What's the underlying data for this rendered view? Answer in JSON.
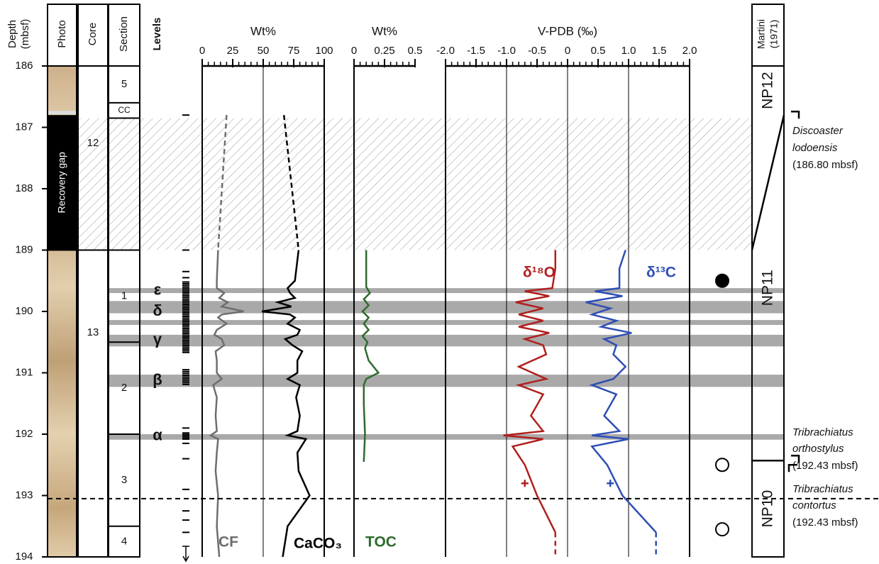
{
  "depth_axis": {
    "label": [
      "Depth",
      "(mbsf)"
    ],
    "ylim": [
      186,
      194
    ],
    "yticks": [
      186,
      187,
      188,
      189,
      190,
      191,
      192,
      193,
      194
    ]
  },
  "columns": {
    "photo": "Photo",
    "core": "Core",
    "section": "Section",
    "levels": "Levels"
  },
  "recovery_gap": {
    "label": "Recovery gap",
    "top": 186.8,
    "bottom": 189
  },
  "cores": [
    {
      "label": "12",
      "top": 186,
      "bottom": 189
    },
    {
      "label": "13",
      "top": 189,
      "bottom": 194
    }
  ],
  "sections": [
    {
      "label": "5",
      "top": 186,
      "bottom": 186.6
    },
    {
      "label": "CC",
      "top": 186.6,
      "bottom": 186.85
    },
    {
      "label": "1",
      "top": 189,
      "bottom": 190.5
    },
    {
      "label": "2",
      "top": 190.5,
      "bottom": 192
    },
    {
      "label": "3",
      "top": 192,
      "bottom": 193.5
    },
    {
      "label": "4",
      "top": 193.5,
      "bottom": 194
    }
  ],
  "levels": [
    {
      "label": "ε",
      "depth": 189.66
    },
    {
      "label": "δ",
      "depth": 190.0
    },
    {
      "label": "γ",
      "depth": 190.47
    },
    {
      "label": "β",
      "depth": 191.13
    },
    {
      "label": "α",
      "depth": 192.03
    }
  ],
  "horizons": [
    [
      189.62,
      189.7
    ],
    [
      189.83,
      190.03
    ],
    [
      190.14,
      190.22
    ],
    [
      190.38,
      190.57
    ],
    [
      191.03,
      191.23
    ],
    [
      192.0,
      192.09
    ]
  ],
  "hatch": [
    186.85,
    189
  ],
  "dashed_boundary": 193.05,
  "markers": [
    {
      "depth": 189.5,
      "filled": true
    },
    {
      "depth": 192.5,
      "filled": false
    },
    {
      "depth": 193.55,
      "filled": false
    }
  ],
  "zones": {
    "title": [
      "Martini",
      "(1971)"
    ],
    "items": [
      {
        "label": "NP12",
        "top": 186,
        "bottom": 186.8
      },
      {
        "label": "NP11",
        "top": 186.8,
        "bottom": 192.43
      },
      {
        "label": "NP10",
        "top": 192.43,
        "bottom": 194
      }
    ]
  },
  "datums": [
    {
      "lines": [
        "Discoaster",
        "lodoensis"
      ],
      "depth_label": "(186.80 mbsf)",
      "depth": 186.8
    },
    {
      "lines": [
        "Tribrachiatus",
        "orthostylus"
      ],
      "depth_label": "(192.43 mbsf)",
      "depth": 192.43
    },
    {
      "lines": [
        "Tribrachiatus",
        "contortus"
      ],
      "depth_label": "(192.43 mbsf)",
      "depth": 192.43
    }
  ],
  "chart_data": [
    {
      "type": "line",
      "title": "Wt%",
      "xlim": [
        0,
        100
      ],
      "xticks": [
        0,
        25,
        50,
        75,
        100
      ],
      "gridlines": [
        50
      ],
      "box": true,
      "series": [
        {
          "name": "CF",
          "color": "#6e6e6e",
          "depths": [
            189.0,
            189.5,
            189.62,
            189.7,
            189.78,
            189.85,
            189.92,
            190.0,
            190.05,
            190.1,
            190.2,
            190.3,
            190.38,
            190.45,
            190.55,
            190.65,
            190.8,
            191.0,
            191.1,
            191.2,
            191.4,
            191.7,
            191.95,
            192.02,
            192.08,
            192.3,
            192.6,
            193.0,
            193.5,
            194.0
          ],
          "values": [
            13,
            12,
            12,
            18,
            14,
            21,
            16,
            34,
            16,
            13,
            20,
            12,
            10,
            16,
            18,
            11,
            12,
            12,
            16,
            9,
            12,
            11,
            12,
            7,
            13,
            12,
            11,
            13,
            12,
            14
          ]
        },
        {
          "color": "#6e6e6e",
          "dashed": true,
          "depths": [
            186.8,
            189.0
          ],
          "values": [
            20,
            13
          ]
        },
        {
          "name": "CaCO₃",
          "color": "#000000",
          "depths": [
            189.0,
            189.5,
            189.62,
            189.7,
            189.78,
            189.85,
            189.92,
            190.0,
            190.05,
            190.1,
            190.2,
            190.3,
            190.38,
            190.45,
            190.55,
            190.65,
            190.8,
            191.0,
            191.1,
            191.2,
            191.4,
            191.7,
            191.95,
            192.02,
            192.08,
            192.3,
            192.6,
            193.0,
            193.5,
            194.0
          ],
          "values": [
            79,
            76,
            70,
            72,
            76,
            62,
            73,
            49,
            72,
            76,
            70,
            80,
            78,
            68,
            74,
            82,
            78,
            78,
            70,
            80,
            77,
            80,
            78,
            70,
            85,
            78,
            79,
            88,
            70,
            66
          ]
        },
        {
          "color": "#000000",
          "dashed": true,
          "depths": [
            186.8,
            189.0
          ],
          "values": [
            67,
            79
          ]
        }
      ]
    },
    {
      "type": "line",
      "title": "Wt%",
      "xlim": [
        0,
        0.5
      ],
      "xticks": [
        0,
        0.25,
        0.5
      ],
      "gridlines": [],
      "box": false,
      "series": [
        {
          "name": "TOC",
          "color": "#2e6b2e",
          "depths": [
            189.0,
            189.6,
            189.7,
            189.8,
            189.9,
            190.0,
            190.1,
            190.2,
            190.3,
            190.4,
            190.5,
            190.6,
            190.8,
            191.0,
            191.1,
            191.2,
            191.5,
            192.0,
            192.45
          ],
          "values": [
            0.1,
            0.1,
            0.13,
            0.08,
            0.12,
            0.07,
            0.12,
            0.08,
            0.12,
            0.07,
            0.11,
            0.09,
            0.12,
            0.2,
            0.1,
            0.08,
            0.08,
            0.09,
            0.08
          ]
        }
      ]
    },
    {
      "type": "line",
      "title": "V-PDB (‰)",
      "xlim": [
        -2,
        2
      ],
      "xticks": [
        {
          "value": -2,
          "label": "-2.0"
        },
        -1.5,
        {
          "value": -1,
          "label": "-1.0"
        },
        -0.5,
        0,
        0.5,
        {
          "value": 1,
          "label": "1.0"
        },
        1.5,
        {
          "value": 2,
          "label": "2.0"
        }
      ],
      "gridlines": [
        -1,
        0,
        1
      ],
      "box": true,
      "series": [
        {
          "name": "δ¹⁸O",
          "color": "#b0201e",
          "depths": [
            189.0,
            189.3,
            189.62,
            189.67,
            189.75,
            189.85,
            189.95,
            190.05,
            190.15,
            190.25,
            190.35,
            190.45,
            190.55,
            190.7,
            190.9,
            191.1,
            191.2,
            191.35,
            191.7,
            191.95,
            192.02,
            192.08,
            192.2,
            192.5,
            193.0,
            193.6
          ],
          "values": [
            -0.2,
            -0.2,
            -0.25,
            -0.7,
            -0.3,
            -0.85,
            -0.4,
            -0.8,
            -0.4,
            -0.8,
            -0.3,
            -0.7,
            -0.4,
            -0.35,
            -0.8,
            -0.35,
            -0.8,
            -0.4,
            -0.6,
            -0.4,
            -1.05,
            -0.4,
            -0.9,
            -0.7,
            -0.5,
            -0.2
          ]
        },
        {
          "color": "#b0201e",
          "dashed": true,
          "depths": [
            193.6,
            194.0
          ],
          "values": [
            -0.2,
            -0.2
          ]
        },
        {
          "name": "δ¹³C",
          "color": "#2f4fb5",
          "depths": [
            189.0,
            189.3,
            189.62,
            189.67,
            189.75,
            189.85,
            189.95,
            190.05,
            190.15,
            190.25,
            190.35,
            190.45,
            190.55,
            190.7,
            190.9,
            191.1,
            191.2,
            191.35,
            191.7,
            191.95,
            192.02,
            192.08,
            192.2,
            192.5,
            193.0,
            193.6
          ],
          "values": [
            0.95,
            0.85,
            0.85,
            0.45,
            0.9,
            0.3,
            0.7,
            0.4,
            0.8,
            0.55,
            1.05,
            0.6,
            0.8,
            0.75,
            0.95,
            0.75,
            0.4,
            0.8,
            0.6,
            0.85,
            0.4,
            1.0,
            0.4,
            0.65,
            0.9,
            1.45
          ]
        },
        {
          "color": "#2f4fb5",
          "dashed": true,
          "depths": [
            193.6,
            194.0
          ],
          "values": [
            1.45,
            1.45
          ]
        }
      ],
      "points": [
        {
          "x": -0.7,
          "depth": 192.8,
          "color": "#b0201e"
        },
        {
          "x": 0.7,
          "depth": 192.8,
          "color": "#2f4fb5"
        }
      ]
    }
  ]
}
